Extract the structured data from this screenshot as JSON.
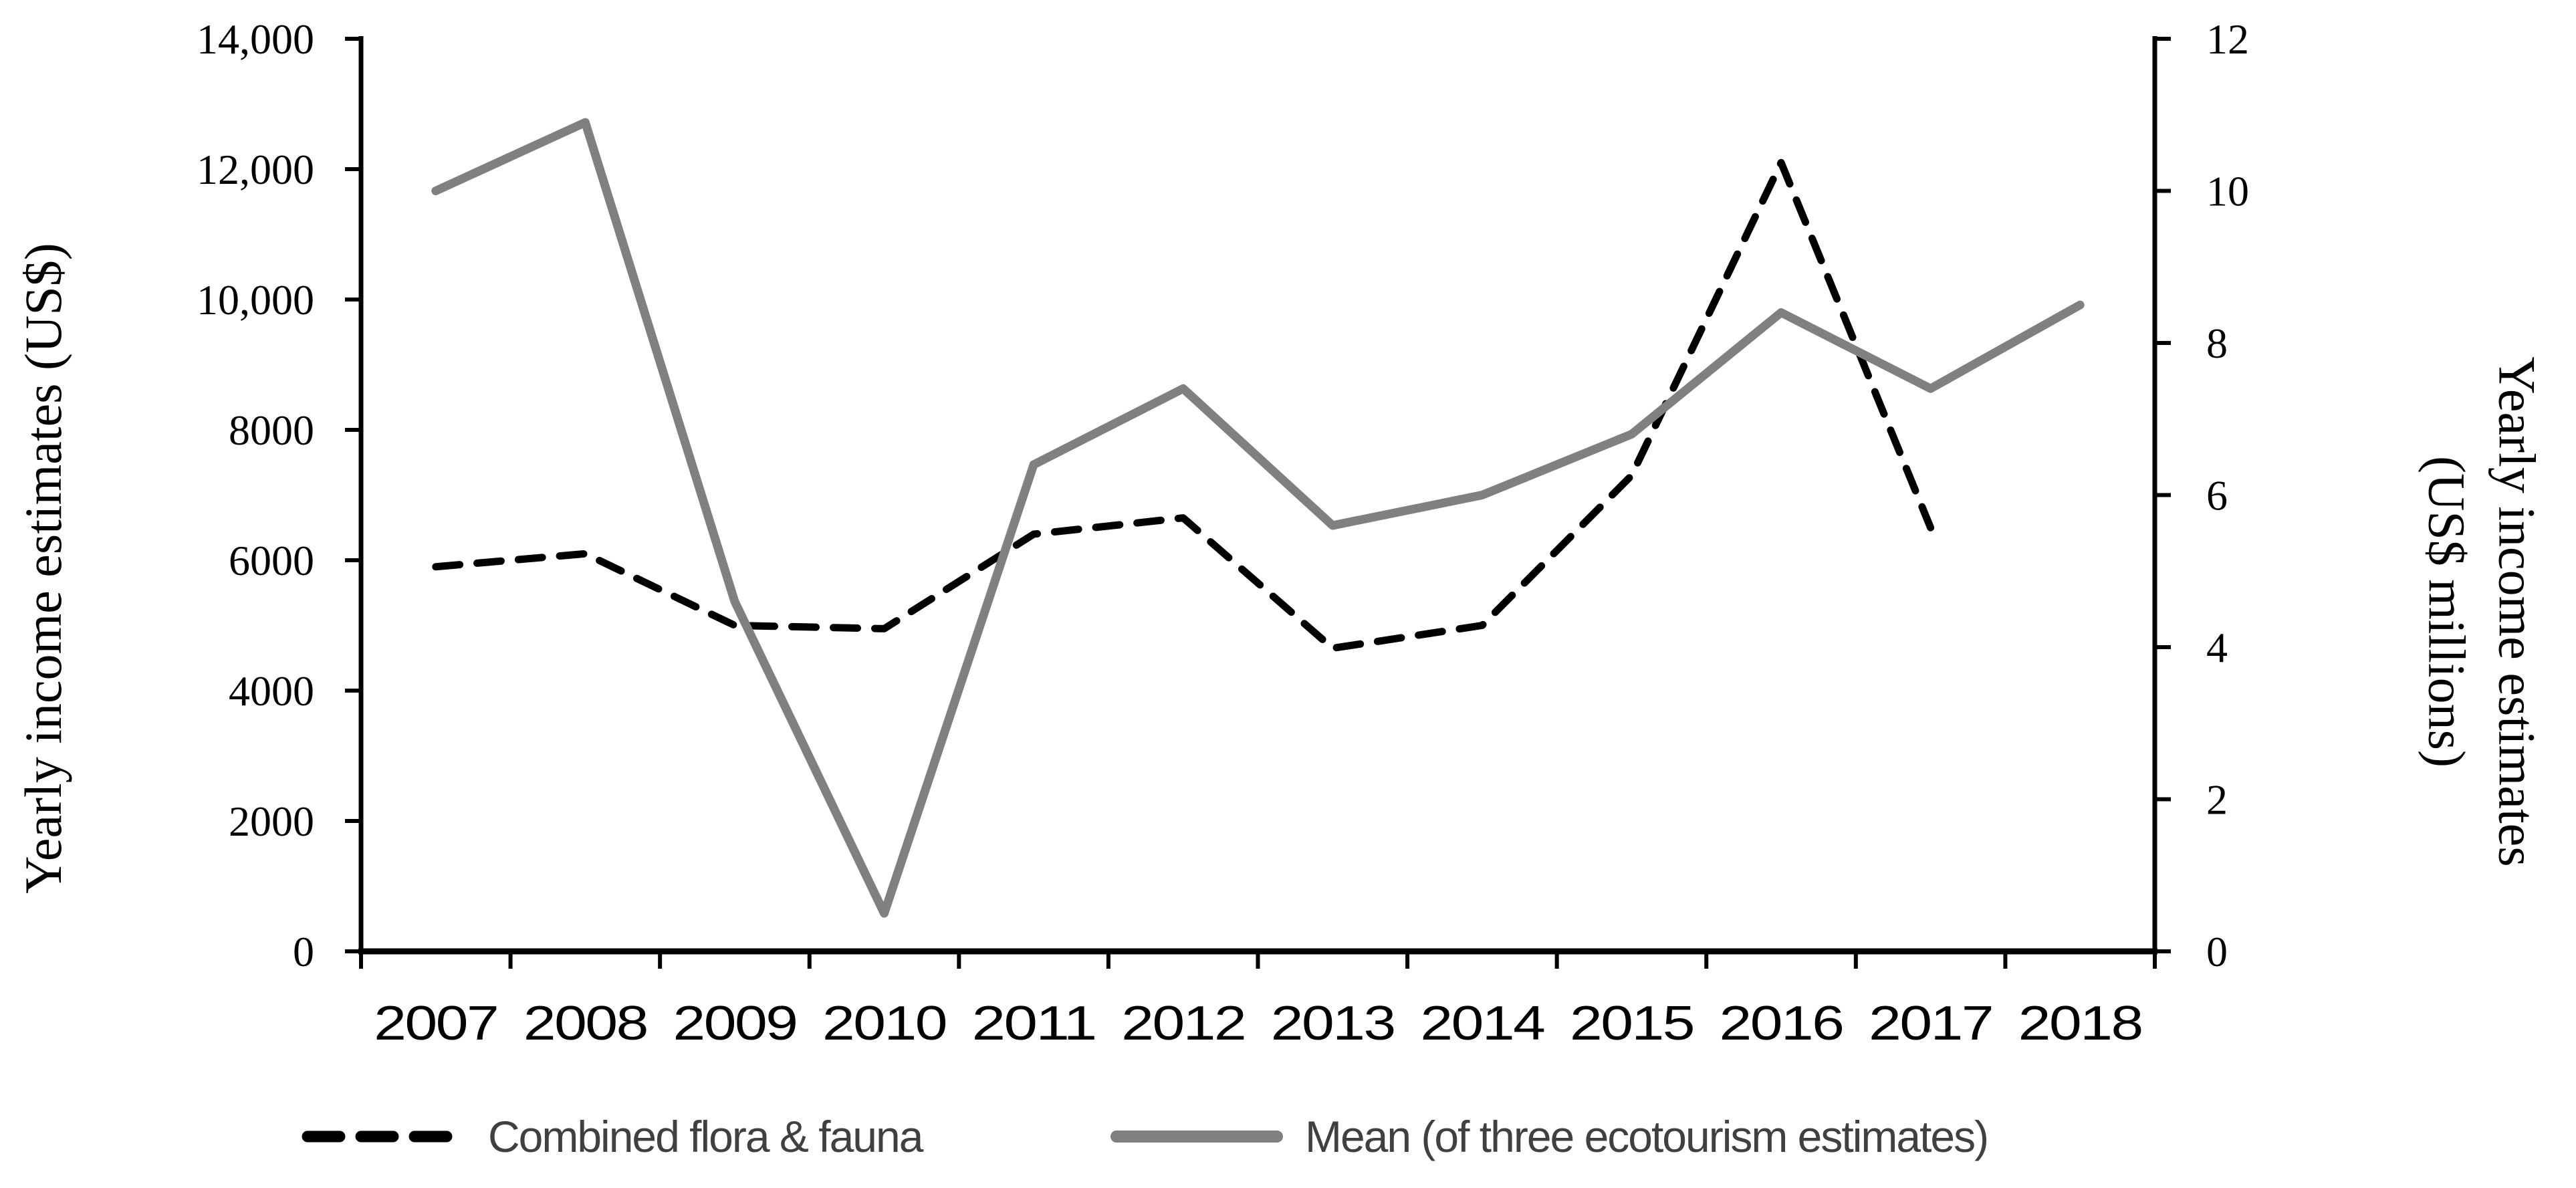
{
  "chart_data": {
    "type": "line",
    "title": "",
    "categories": [
      "2007",
      "2008",
      "2009",
      "2010",
      "2011",
      "2012",
      "2013",
      "2014",
      "2015",
      "2016",
      "2017",
      "2018"
    ],
    "series": [
      {
        "name": "Combined flora & fauna",
        "axis": "left",
        "color": "#000000",
        "style": "dashed",
        "values": [
          5900,
          6100,
          5000,
          4950,
          6400,
          6650,
          4650,
          5000,
          7300,
          12100,
          6500,
          null
        ]
      },
      {
        "name": "Mean (of three ecotourism estimates)",
        "axis": "right",
        "color": "#808080",
        "style": "solid",
        "values": [
          10.0,
          10.9,
          4.6,
          0.5,
          6.4,
          7.4,
          5.6,
          6.0,
          6.8,
          8.4,
          7.4,
          8.5
        ]
      }
    ],
    "left_axis": {
      "title": "Yearly income estimates (US$)",
      "tick_labels_top_to_bottom": [
        "14,000",
        "12,000",
        "10,000",
        "8000",
        "6000",
        "4000",
        "2000",
        "0"
      ],
      "range": [
        0,
        14000
      ],
      "tick_step": 2000
    },
    "right_axis": {
      "title_line1": "Yearly income estimates",
      "title_line2": "(US$ millions)",
      "tick_labels_top_to_bottom": [
        "12",
        "10",
        "8",
        "6",
        "4",
        "2",
        "0"
      ],
      "range": [
        0,
        12
      ],
      "tick_step": 2
    },
    "legend": {
      "position": "bottom",
      "entries": [
        "Combined flora & fauna",
        "Mean (of three ecotourism estimates)"
      ]
    },
    "grid": "off",
    "colors": {
      "series1": "#000000",
      "series2": "#808080",
      "axis": "#000000",
      "legend_text": "#404040",
      "background": "#ffffff"
    }
  }
}
